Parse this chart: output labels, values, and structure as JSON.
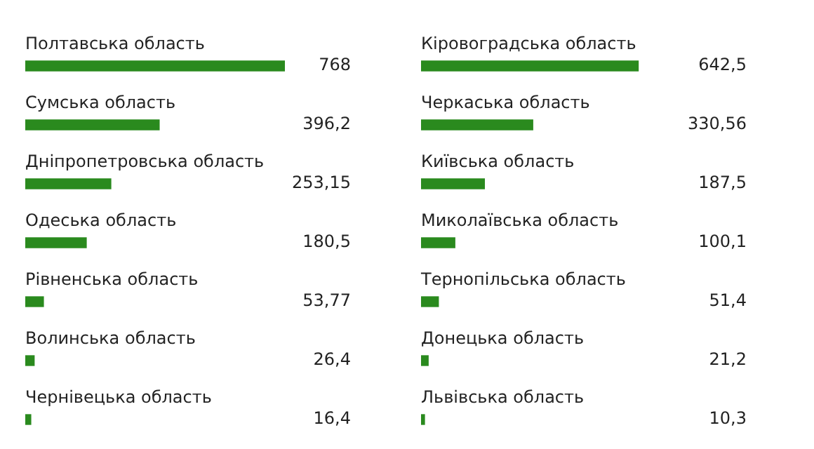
{
  "chart_data": [
    {
      "type": "bar",
      "orientation": "horizontal",
      "tick_labels": false,
      "categories": [
        "Полтавська область",
        "Сумська область",
        "Дніпропетровська область",
        "Одеська область",
        "Рівненська область",
        "Волинська область",
        "Чернівецька область"
      ],
      "values": [
        768,
        396.2,
        253.15,
        180.5,
        53.77,
        26.4,
        16.4
      ],
      "color": "#2a8a1e",
      "value_labels": [
        "768",
        "396,2",
        "253,15",
        "180,5",
        "53,77",
        "26,4",
        "16,4"
      ]
    },
    {
      "type": "bar",
      "orientation": "horizontal",
      "tick_labels": false,
      "categories": [
        "Кіровоградська область",
        "Черкаська область",
        "Київська область",
        "Миколаївська область",
        "Тернопільська область",
        "Донецька область",
        "Львівська область"
      ],
      "values": [
        642.5,
        330.56,
        187.5,
        100.1,
        51.4,
        21.2,
        10.3
      ],
      "color": "#2a8a1e",
      "value_labels": [
        "642,5",
        "330,56",
        "187,5",
        "100,1",
        "51,4",
        "21,2",
        "10,3"
      ]
    }
  ]
}
